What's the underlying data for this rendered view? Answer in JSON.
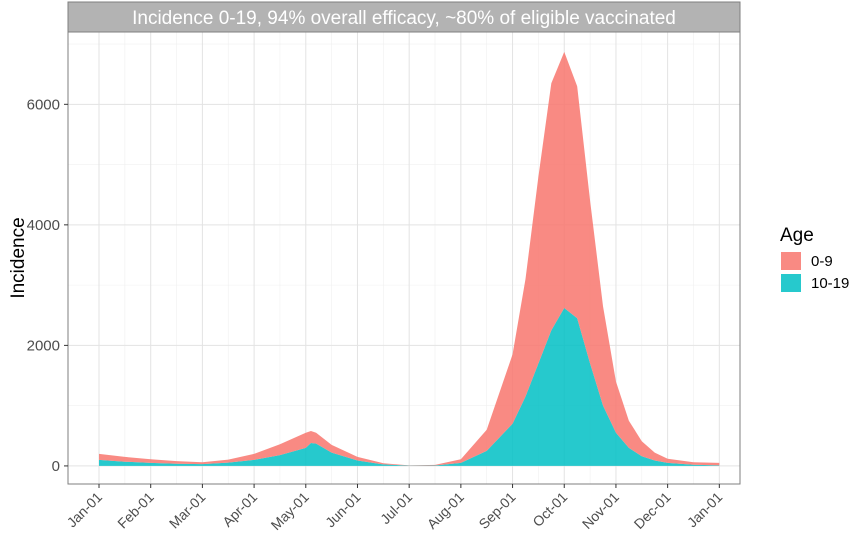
{
  "chart_data": {
    "type": "area",
    "stacked": true,
    "title": "Incidence 0-19, 94% overall efficacy, ~80% of eligible vaccinated",
    "xlabel": "",
    "ylabel": "Incidence",
    "ylim": [
      -300,
      7200
    ],
    "y_ticks": [
      0,
      2000,
      4000,
      6000
    ],
    "y_tick_labels": [
      "0",
      "2000",
      "4000",
      "6000"
    ],
    "x_tick_labels": [
      "Jan-01",
      "Feb-01",
      "Mar-01",
      "Apr-01",
      "May-01",
      "Jun-01",
      "Jul-01",
      "Aug-01",
      "Sep-01",
      "Oct-01",
      "Nov-01",
      "Dec-01",
      "Jan-01"
    ],
    "x_unit": "months since Jan-01",
    "xlim": [
      -0.6,
      12.4
    ],
    "grid": true,
    "legend": {
      "title": "Age",
      "position": "right",
      "entries": [
        {
          "label": "0-9",
          "color": "#F8766D"
        },
        {
          "label": "10-19",
          "color": "#00BFC4"
        }
      ]
    },
    "x": [
      0,
      0.5,
      1,
      1.5,
      2,
      2.5,
      3,
      3.5,
      4,
      4.1,
      4.2,
      4.5,
      5,
      5.5,
      6,
      6.5,
      7,
      7.5,
      8,
      8.25,
      8.5,
      8.75,
      9,
      9.25,
      9.5,
      9.75,
      10,
      10.25,
      10.5,
      10.75,
      11,
      11.5,
      12
    ],
    "series": [
      {
        "name": "10-19",
        "color": "#00BFC4",
        "values": [
          100,
          70,
          50,
          35,
          30,
          55,
          100,
          180,
          300,
          380,
          370,
          220,
          90,
          25,
          5,
          8,
          50,
          250,
          700,
          1150,
          1700,
          2250,
          2620,
          2450,
          1700,
          1000,
          550,
          300,
          160,
          90,
          50,
          20,
          10
        ]
      },
      {
        "name": "0-9",
        "color": "#F8766D",
        "values": [
          100,
          80,
          60,
          45,
          30,
          50,
          100,
          180,
          250,
          200,
          180,
          130,
          60,
          20,
          5,
          10,
          60,
          350,
          1150,
          1950,
          3100,
          4100,
          4250,
          3850,
          2700,
          1650,
          850,
          450,
          250,
          130,
          70,
          40,
          40
        ]
      }
    ]
  }
}
